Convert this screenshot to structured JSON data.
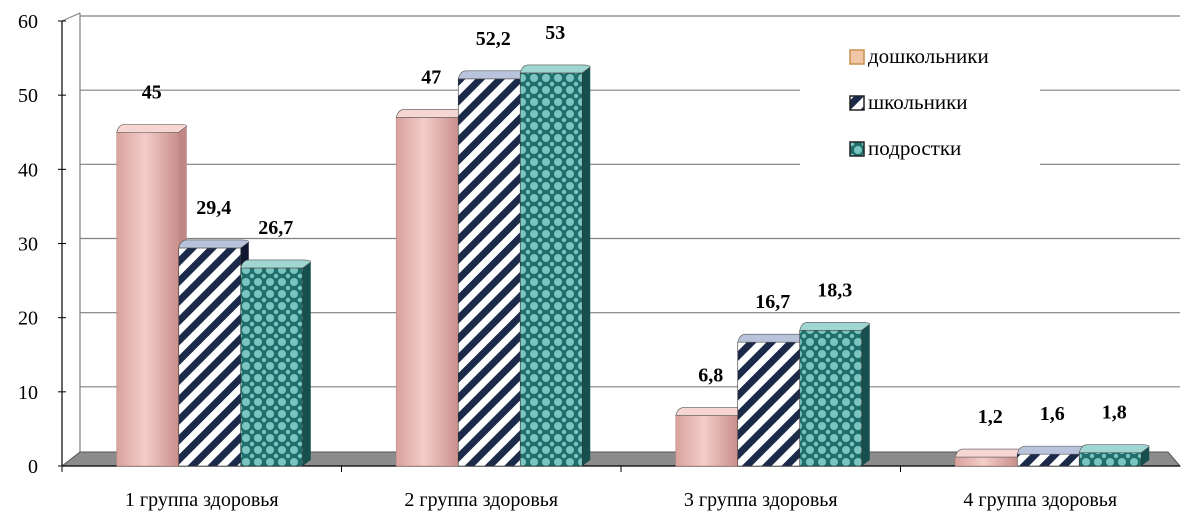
{
  "chart_data": {
    "type": "bar",
    "title": "",
    "xlabel": "",
    "ylabel": "",
    "categories": [
      "1 группа здоровья",
      "2 группа здоровья",
      "3 группа здоровья",
      "4 группа здоровья"
    ],
    "series": [
      {
        "name": "дошкольники",
        "values": [
          45,
          47,
          6.8,
          1.2
        ],
        "labels": [
          "45",
          "47",
          "6,8",
          "1,2"
        ],
        "color": "#e8b4b0"
      },
      {
        "name": "школьники",
        "values": [
          29.4,
          52.2,
          16.7,
          1.6
        ],
        "labels": [
          "29,4",
          "52,2",
          "16,7",
          "1,6"
        ],
        "color": "#1c2a4a"
      },
      {
        "name": "подростки",
        "values": [
          26.7,
          53,
          18.3,
          1.8
        ],
        "labels": [
          "26,7",
          "53",
          "18,3",
          "1,8"
        ],
        "color": "#2f7f7c"
      }
    ],
    "ylim": [
      0,
      60
    ],
    "yticks": [
      0,
      10,
      20,
      30,
      40,
      50,
      60
    ],
    "grid": true,
    "legend_position": "top-right"
  }
}
